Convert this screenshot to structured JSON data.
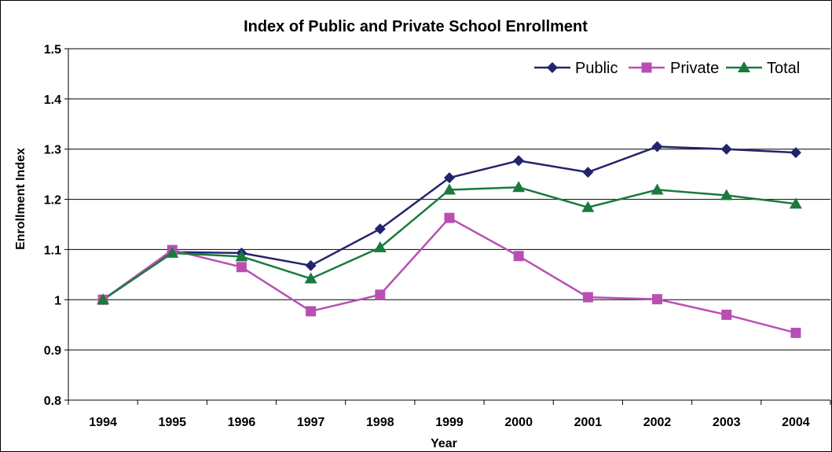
{
  "chart_data": {
    "type": "line",
    "title": "Index of Public and Private School Enrollment",
    "xlabel": "Year",
    "ylabel": "Enrollment Index",
    "categories": [
      "1994",
      "1995",
      "1996",
      "1997",
      "1998",
      "1999",
      "2000",
      "2001",
      "2002",
      "2003",
      "2004"
    ],
    "ylim": [
      0.8,
      1.5
    ],
    "yticks": [
      "0.8",
      "0.9",
      "1",
      "1.1",
      "1.2",
      "1.3",
      "1.4",
      "1.5"
    ],
    "grid": true,
    "legend_position": "top-right",
    "series": [
      {
        "name": "Public",
        "color": "#23246e",
        "marker": "diamond",
        "values": [
          1.0,
          1.095,
          1.093,
          1.068,
          1.141,
          1.243,
          1.277,
          1.254,
          1.305,
          1.3,
          1.293
        ]
      },
      {
        "name": "Private",
        "color": "#b94fb4",
        "marker": "square",
        "values": [
          1.0,
          1.099,
          1.065,
          0.977,
          1.01,
          1.163,
          1.087,
          1.005,
          1.001,
          0.97,
          0.934
        ]
      },
      {
        "name": "Total",
        "color": "#1a7a3e",
        "marker": "triangle",
        "values": [
          1.0,
          1.093,
          1.086,
          1.042,
          1.104,
          1.219,
          1.224,
          1.184,
          1.219,
          1.208,
          1.191
        ]
      }
    ]
  }
}
